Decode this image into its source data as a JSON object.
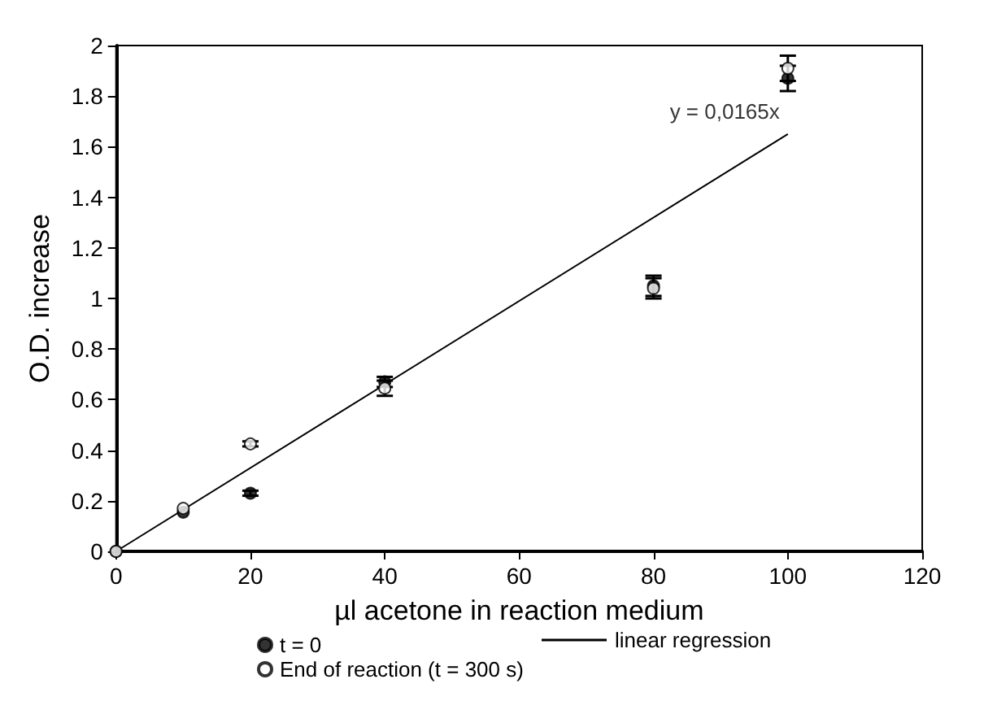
{
  "chart_data": {
    "type": "scatter",
    "xlabel": "µl acetone in reaction medium",
    "ylabel": "O.D. increase",
    "xlim": [
      0,
      120
    ],
    "xticks": [
      0,
      20,
      40,
      60,
      80,
      100,
      120
    ],
    "ylim": [
      0,
      2
    ],
    "yticks": [
      0,
      0.2,
      0.4,
      0.6,
      0.8,
      1,
      1.2,
      1.4,
      1.6,
      1.8,
      2
    ],
    "x": [
      0,
      10,
      20,
      40,
      80,
      100
    ],
    "marker": "circle",
    "legend": "bottom",
    "grid": false,
    "series": [
      {
        "name": "t = 0",
        "color": "#000000",
        "values": [
          0,
          0.155,
          0.23,
          0.67,
          1.05,
          1.87
        ],
        "errors": [
          null,
          null,
          0.01,
          0.02,
          0.04,
          0.05
        ]
      },
      {
        "name": "End of reaction (t = 300 s)",
        "color": "#ffffff",
        "values": [
          0,
          0.17,
          0.425,
          0.645,
          1.04,
          1.91
        ],
        "errors": [
          null,
          null,
          0.01,
          0.03,
          0.04,
          0.05
        ]
      },
      {
        "name": "linear regression",
        "type": "line",
        "color": "#000000",
        "line_style": "solid",
        "marker": "none",
        "x": [
          0,
          100
        ],
        "values": [
          0,
          1.65
        ]
      }
    ],
    "annotations": [
      {
        "text": "y = 0,0165x",
        "x": 100,
        "y": 1.65
      }
    ]
  }
}
